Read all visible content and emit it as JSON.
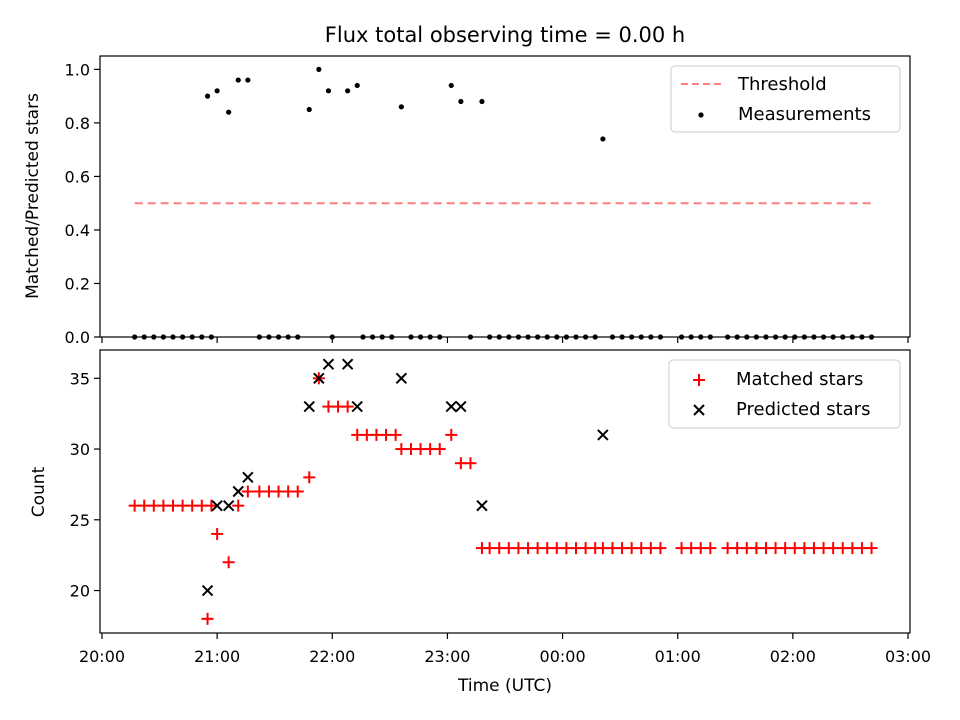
{
  "chart_data": [
    {
      "type": "scatter",
      "title": "Flux total observing time = 0.00 h",
      "xlabel": "",
      "ylabel": "Matched/Predicted stars",
      "ylim": [
        0,
        1.05
      ],
      "yticks": [
        "0.0",
        "0.2",
        "0.4",
        "0.6",
        "0.8",
        "1.0"
      ],
      "legend_position": "top-right",
      "series": [
        {
          "name": "Threshold",
          "style": "dashed-line",
          "color": "#ff7f7f",
          "x_start": "20:17",
          "x_end": "02:43",
          "y": 0.5
        },
        {
          "name": "Measurements",
          "style": "dot",
          "color": "#000000",
          "points": [
            [
              "20:17",
              0
            ],
            [
              "20:22",
              0
            ],
            [
              "20:27",
              0
            ],
            [
              "20:32",
              0
            ],
            [
              "20:37",
              0
            ],
            [
              "20:42",
              0
            ],
            [
              "20:47",
              0
            ],
            [
              "20:52",
              0
            ],
            [
              "20:57",
              0
            ],
            [
              "20:55",
              0.9
            ],
            [
              "21:00",
              0.92
            ],
            [
              "21:06",
              0.84
            ],
            [
              "21:11",
              0.96
            ],
            [
              "21:16",
              0.96
            ],
            [
              "21:48",
              0.85
            ],
            [
              "21:53",
              1.0
            ],
            [
              "21:58",
              0.92
            ],
            [
              "22:08",
              0.92
            ],
            [
              "22:13",
              0.94
            ],
            [
              "22:36",
              0.86
            ],
            [
              "23:02",
              0.94
            ],
            [
              "23:07",
              0.88
            ],
            [
              "23:18",
              0.88
            ],
            [
              "00:21",
              0.74
            ],
            [
              "21:22",
              0
            ],
            [
              "21:27",
              0
            ],
            [
              "21:32",
              0
            ],
            [
              "21:37",
              0
            ],
            [
              "21:42",
              0
            ],
            [
              "22:00",
              0
            ],
            [
              "22:16",
              0
            ],
            [
              "22:21",
              0
            ],
            [
              "22:26",
              0
            ],
            [
              "22:31",
              0
            ],
            [
              "22:41",
              0
            ],
            [
              "22:46",
              0
            ],
            [
              "22:51",
              0
            ],
            [
              "22:56",
              0
            ],
            [
              "23:12",
              0
            ],
            [
              "23:22",
              0
            ],
            [
              "23:27",
              0
            ],
            [
              "23:32",
              0
            ],
            [
              "23:37",
              0
            ],
            [
              "23:42",
              0
            ],
            [
              "23:47",
              0
            ],
            [
              "23:52",
              0
            ],
            [
              "23:57",
              0
            ],
            [
              "00:02",
              0
            ],
            [
              "00:07",
              0
            ],
            [
              "00:12",
              0
            ],
            [
              "00:17",
              0
            ],
            [
              "00:26",
              0
            ],
            [
              "00:31",
              0
            ],
            [
              "00:36",
              0
            ],
            [
              "00:41",
              0
            ],
            [
              "00:46",
              0
            ],
            [
              "00:51",
              0
            ],
            [
              "01:02",
              0
            ],
            [
              "01:07",
              0
            ],
            [
              "01:12",
              0
            ],
            [
              "01:17",
              0
            ],
            [
              "01:26",
              0
            ],
            [
              "01:31",
              0
            ],
            [
              "01:36",
              0
            ],
            [
              "01:41",
              0
            ],
            [
              "01:46",
              0
            ],
            [
              "01:51",
              0
            ],
            [
              "01:56",
              0
            ],
            [
              "02:01",
              0
            ],
            [
              "02:06",
              0
            ],
            [
              "02:11",
              0
            ],
            [
              "02:16",
              0
            ],
            [
              "02:21",
              0
            ],
            [
              "02:26",
              0
            ],
            [
              "02:31",
              0
            ],
            [
              "02:36",
              0
            ],
            [
              "02:41",
              0
            ]
          ]
        }
      ]
    },
    {
      "type": "scatter",
      "title": "",
      "xlabel": "Time (UTC)",
      "ylabel": "Count",
      "ylim": [
        17,
        37
      ],
      "yticks": [
        "20",
        "25",
        "30",
        "35"
      ],
      "xticks": [
        "20:00",
        "21:00",
        "22:00",
        "23:00",
        "00:00",
        "01:00",
        "02:00",
        "03:00"
      ],
      "legend_position": "top-right",
      "series": [
        {
          "name": "Matched stars",
          "style": "plus",
          "color": "#ff0000",
          "points": [
            [
              "20:17",
              26
            ],
            [
              "20:22",
              26
            ],
            [
              "20:27",
              26
            ],
            [
              "20:32",
              26
            ],
            [
              "20:37",
              26
            ],
            [
              "20:42",
              26
            ],
            [
              "20:47",
              26
            ],
            [
              "20:52",
              26
            ],
            [
              "20:57",
              26
            ],
            [
              "20:55",
              18
            ],
            [
              "21:00",
              24
            ],
            [
              "21:06",
              22
            ],
            [
              "21:11",
              26
            ],
            [
              "21:16",
              27
            ],
            [
              "21:22",
              27
            ],
            [
              "21:27",
              27
            ],
            [
              "21:32",
              27
            ],
            [
              "21:37",
              27
            ],
            [
              "21:42",
              27
            ],
            [
              "21:48",
              28
            ],
            [
              "21:53",
              35
            ],
            [
              "21:58",
              33
            ],
            [
              "22:03",
              33
            ],
            [
              "22:08",
              33
            ],
            [
              "22:13",
              31
            ],
            [
              "22:18",
              31
            ],
            [
              "22:23",
              31
            ],
            [
              "22:28",
              31
            ],
            [
              "22:33",
              31
            ],
            [
              "22:36",
              30
            ],
            [
              "22:41",
              30
            ],
            [
              "22:46",
              30
            ],
            [
              "22:51",
              30
            ],
            [
              "22:56",
              30
            ],
            [
              "23:02",
              31
            ],
            [
              "23:07",
              29
            ],
            [
              "23:12",
              29
            ],
            [
              "23:18",
              23
            ],
            [
              "23:22",
              23
            ],
            [
              "23:27",
              23
            ],
            [
              "23:32",
              23
            ],
            [
              "23:37",
              23
            ],
            [
              "23:42",
              23
            ],
            [
              "23:47",
              23
            ],
            [
              "23:52",
              23
            ],
            [
              "23:57",
              23
            ],
            [
              "00:02",
              23
            ],
            [
              "00:07",
              23
            ],
            [
              "00:12",
              23
            ],
            [
              "00:17",
              23
            ],
            [
              "00:21",
              23
            ],
            [
              "00:26",
              23
            ],
            [
              "00:31",
              23
            ],
            [
              "00:36",
              23
            ],
            [
              "00:41",
              23
            ],
            [
              "00:46",
              23
            ],
            [
              "00:51",
              23
            ],
            [
              "01:02",
              23
            ],
            [
              "01:07",
              23
            ],
            [
              "01:12",
              23
            ],
            [
              "01:17",
              23
            ],
            [
              "01:26",
              23
            ],
            [
              "01:31",
              23
            ],
            [
              "01:36",
              23
            ],
            [
              "01:41",
              23
            ],
            [
              "01:46",
              23
            ],
            [
              "01:51",
              23
            ],
            [
              "01:56",
              23
            ],
            [
              "02:01",
              23
            ],
            [
              "02:06",
              23
            ],
            [
              "02:11",
              23
            ],
            [
              "02:16",
              23
            ],
            [
              "02:21",
              23
            ],
            [
              "02:26",
              23
            ],
            [
              "02:31",
              23
            ],
            [
              "02:36",
              23
            ],
            [
              "02:41",
              23
            ]
          ]
        },
        {
          "name": "Predicted stars",
          "style": "cross",
          "color": "#000000",
          "points": [
            [
              "20:55",
              20
            ],
            [
              "21:00",
              26
            ],
            [
              "21:06",
              26
            ],
            [
              "21:11",
              27
            ],
            [
              "21:16",
              28
            ],
            [
              "21:48",
              33
            ],
            [
              "21:53",
              35
            ],
            [
              "21:58",
              36
            ],
            [
              "22:08",
              36
            ],
            [
              "22:13",
              33
            ],
            [
              "22:36",
              35
            ],
            [
              "23:02",
              33
            ],
            [
              "23:07",
              33
            ],
            [
              "23:18",
              26
            ],
            [
              "00:21",
              31
            ]
          ]
        }
      ]
    }
  ]
}
